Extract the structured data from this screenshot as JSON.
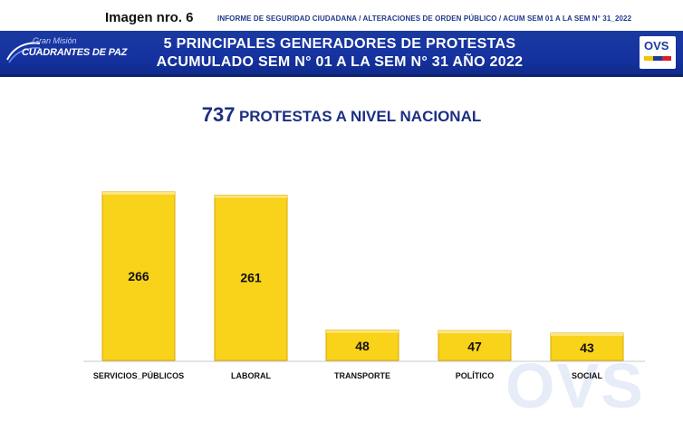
{
  "header": {
    "image_label": "Imagen nro.  6",
    "report_line": "INFORME DE SEGURIDAD CIUDADANA / ALTERACIONES DE ORDEN PÚBLICO / ACUM SEM 01 A LA SEM N° 31_2022"
  },
  "banner": {
    "brand_small": "Gran Misión",
    "brand_big": "CUADRANTES DE PAZ",
    "title_line1": "5 PRINCIPALES GENERADORES DE PROTESTAS",
    "title_line2": "ACUMULADO SEM N° 01 A LA SEM N° 31 AÑO 2022",
    "logo_text": "OVS"
  },
  "subtitle": {
    "number": "737",
    "text": "PROTESTAS A NIVEL NACIONAL"
  },
  "watermark": "OVS",
  "colors": {
    "banner": "#1b3aa0",
    "bar": "#f9d21a",
    "bar_edge": "#d9a800",
    "title": "#1d2f84"
  },
  "chart_data": {
    "type": "bar",
    "title": "5 PRINCIPALES GENERADORES DE PROTESTAS",
    "categories": [
      "SERVICIOS_PÚBLICOS",
      "LABORAL",
      "TRANSPORTE",
      "POLÍTICO",
      "SOCIAL"
    ],
    "values": [
      266,
      261,
      48,
      47,
      43
    ],
    "xlabel": "",
    "ylabel": "",
    "ylim": [
      0,
      270
    ],
    "grid": false,
    "legend": "none"
  }
}
